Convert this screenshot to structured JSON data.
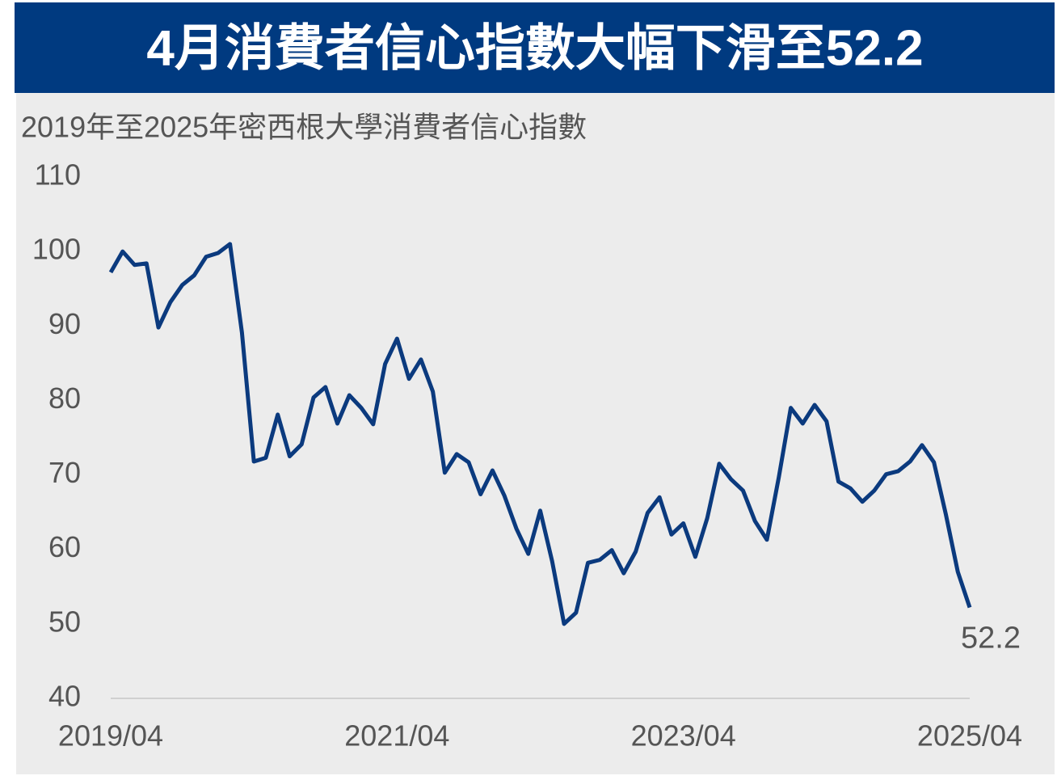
{
  "chart_data": {
    "type": "line",
    "title": "4月消費者信心指數大幅下滑至52.2",
    "subtitle": "2019年至2025年密西根大學消費者信心指數",
    "categories": [
      "2019/04",
      null,
      null,
      null,
      null,
      null,
      null,
      null,
      null,
      null,
      null,
      null,
      null,
      null,
      null,
      null,
      null,
      null,
      null,
      null,
      null,
      null,
      null,
      null,
      "2021/04",
      null,
      null,
      null,
      null,
      null,
      null,
      null,
      null,
      null,
      null,
      null,
      null,
      null,
      null,
      null,
      null,
      null,
      null,
      null,
      null,
      null,
      null,
      null,
      "2023/04",
      null,
      null,
      null,
      null,
      null,
      null,
      null,
      null,
      null,
      null,
      null,
      null,
      null,
      null,
      null,
      null,
      null,
      null,
      null,
      null,
      null,
      null,
      null,
      "2025/04"
    ],
    "values": [
      97.2,
      100.0,
      98.2,
      98.4,
      89.8,
      93.2,
      95.5,
      96.8,
      99.3,
      99.8,
      101.0,
      89.1,
      71.8,
      72.3,
      78.1,
      72.5,
      74.1,
      80.4,
      81.8,
      76.9,
      80.7,
      79.0,
      76.8,
      84.9,
      88.3,
      82.9,
      85.5,
      81.2,
      70.3,
      72.8,
      71.7,
      67.4,
      70.6,
      67.2,
      62.8,
      59.4,
      65.2,
      58.4,
      50.0,
      51.5,
      58.2,
      58.6,
      59.9,
      56.8,
      59.7,
      64.9,
      67.0,
      62.0,
      63.5,
      59.0,
      64.2,
      71.5,
      69.4,
      67.9,
      63.8,
      61.3,
      69.7,
      79.0,
      76.9,
      79.4,
      77.2,
      69.1,
      68.2,
      66.4,
      67.9,
      70.1,
      70.5,
      71.8,
      74.0,
      71.7,
      64.7,
      57.0,
      52.2
    ],
    "color": "#0b3a7e",
    "ylim": [
      40,
      110
    ],
    "yticks": [
      40,
      50,
      60,
      70,
      80,
      90,
      100,
      110
    ]
  }
}
